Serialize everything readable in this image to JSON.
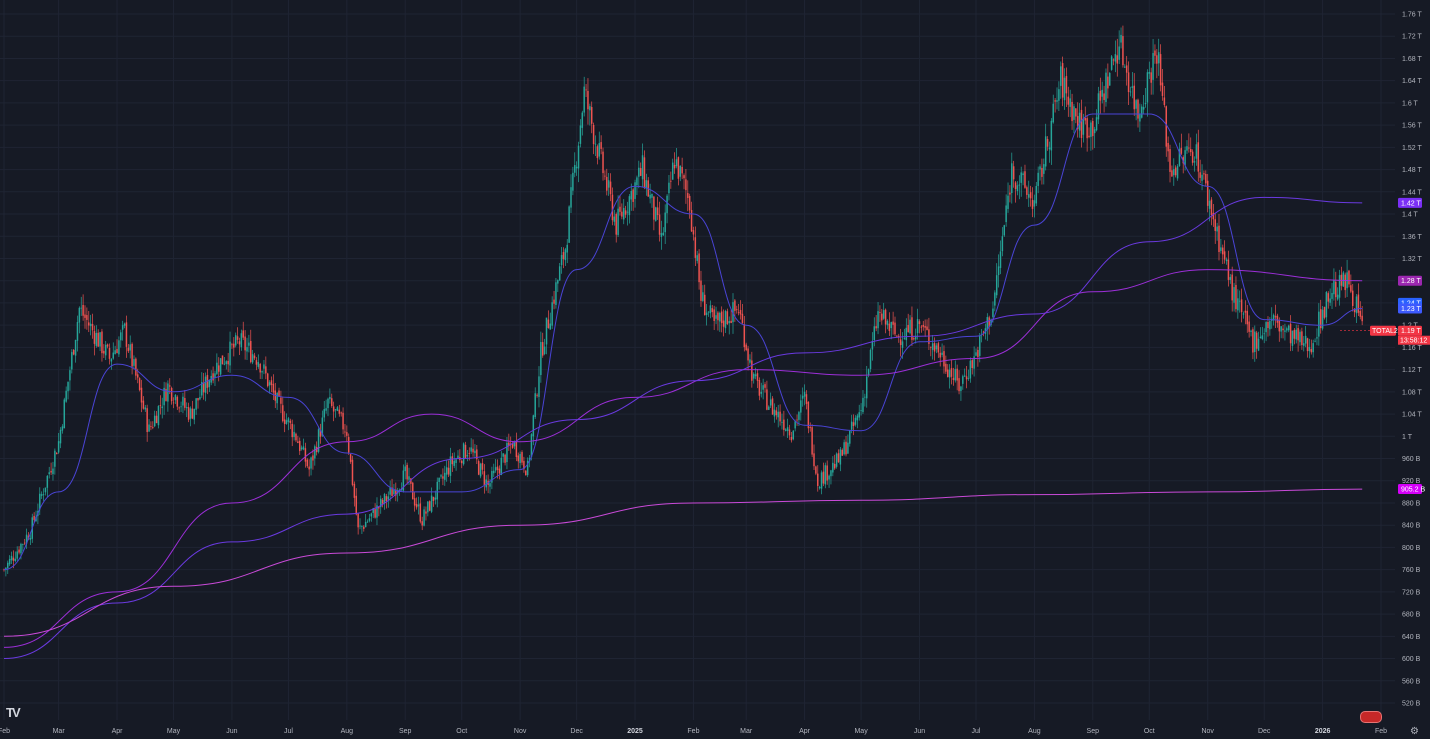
{
  "chart_data": {
    "type": "candlestick",
    "symbol": "TOTAL2",
    "countdown": "13:58:12",
    "y_axis": {
      "ticks": [
        "1.76 T",
        "1.72 T",
        "1.68 T",
        "1.64 T",
        "1.6 T",
        "1.56 T",
        "1.52 T",
        "1.48 T",
        "1.44 T",
        "1.4 T",
        "1.36 T",
        "1.32 T",
        "1.28 T",
        "1.24 T",
        "1.2 T",
        "1.16 T",
        "1.12 T",
        "1.08 T",
        "1.04 T",
        "1 T",
        "960 B",
        "920 B",
        "880 B",
        "840 B",
        "800 B",
        "760 B",
        "720 B",
        "680 B",
        "640 B",
        "600 B",
        "560 B",
        "520 B"
      ],
      "values": [
        1760,
        1720,
        1680,
        1640,
        1600,
        1560,
        1520,
        1480,
        1440,
        1400,
        1360,
        1320,
        1280,
        1240,
        1200,
        1160,
        1120,
        1080,
        1040,
        1000,
        960,
        920,
        880,
        840,
        800,
        760,
        720,
        680,
        640,
        600,
        560,
        520
      ],
      "unit": "B"
    },
    "x_axis": {
      "ticks": [
        "Feb",
        "Mar",
        "Apr",
        "May",
        "Jun",
        "Jul",
        "Aug",
        "Sep",
        "Oct",
        "Nov",
        "Dec",
        "2025",
        "Feb",
        "Mar",
        "Apr",
        "May",
        "Jun",
        "Jul",
        "Aug",
        "Sep",
        "Oct",
        "Nov",
        "Dec",
        "2026",
        "Feb"
      ],
      "bold": [
        "2025",
        "2026"
      ],
      "range": [
        "2024-02-01",
        "2026-02-01"
      ]
    },
    "price_path": [
      [
        "2024-02-01",
        760
      ],
      [
        "2024-02-15",
        830
      ],
      [
        "2024-03-01",
        990
      ],
      [
        "2024-03-12",
        1230
      ],
      [
        "2024-03-28",
        1140
      ],
      [
        "2024-04-05",
        1190
      ],
      [
        "2024-04-18",
        1010
      ],
      [
        "2024-04-28",
        1090
      ],
      [
        "2024-05-10",
        1040
      ],
      [
        "2024-05-22",
        1120
      ],
      [
        "2024-06-05",
        1170
      ],
      [
        "2024-06-15",
        1140
      ],
      [
        "2024-06-25",
        1060
      ],
      [
        "2024-07-05",
        1000
      ],
      [
        "2024-07-12",
        940
      ],
      [
        "2024-07-22",
        1060
      ],
      [
        "2024-08-01",
        1010
      ],
      [
        "2024-08-07",
        830
      ],
      [
        "2024-08-20",
        880
      ],
      [
        "2024-09-01",
        930
      ],
      [
        "2024-09-10",
        850
      ],
      [
        "2024-09-25",
        950
      ],
      [
        "2024-10-05",
        980
      ],
      [
        "2024-10-15",
        910
      ],
      [
        "2024-10-28",
        990
      ],
      [
        "2024-11-05",
        940
      ],
      [
        "2024-11-12",
        1150
      ],
      [
        "2024-11-25",
        1340
      ],
      [
        "2024-12-05",
        1620
      ],
      [
        "2024-12-12",
        1520
      ],
      [
        "2024-12-22",
        1380
      ],
      [
        "2025-01-05",
        1480
      ],
      [
        "2025-01-15",
        1350
      ],
      [
        "2025-01-22",
        1500
      ],
      [
        "2025-01-30",
        1420
      ],
      [
        "2025-02-05",
        1250
      ],
      [
        "2025-02-12",
        1200
      ],
      [
        "2025-02-25",
        1230
      ],
      [
        "2025-03-05",
        1100
      ],
      [
        "2025-03-15",
        1050
      ],
      [
        "2025-03-25",
        1010
      ],
      [
        "2025-04-01",
        1070
      ],
      [
        "2025-04-08",
        920
      ],
      [
        "2025-04-20",
        960
      ],
      [
        "2025-05-01",
        1050
      ],
      [
        "2025-05-10",
        1220
      ],
      [
        "2025-05-20",
        1180
      ],
      [
        "2025-06-01",
        1200
      ],
      [
        "2025-06-12",
        1150
      ],
      [
        "2025-06-22",
        1090
      ],
      [
        "2025-06-30",
        1140
      ],
      [
        "2025-07-10",
        1230
      ],
      [
        "2025-07-20",
        1480
      ],
      [
        "2025-08-01",
        1420
      ],
      [
        "2025-08-15",
        1640
      ],
      [
        "2025-08-25",
        1560
      ],
      [
        "2025-09-01",
        1560
      ],
      [
        "2025-09-15",
        1710
      ],
      [
        "2025-09-25",
        1580
      ],
      [
        "2025-10-05",
        1700
      ],
      [
        "2025-10-12",
        1480
      ],
      [
        "2025-10-25",
        1520
      ],
      [
        "2025-11-05",
        1380
      ],
      [
        "2025-11-15",
        1250
      ],
      [
        "2025-11-25",
        1170
      ],
      [
        "2025-12-05",
        1210
      ],
      [
        "2025-12-15",
        1180
      ],
      [
        "2025-12-25",
        1160
      ],
      [
        "2026-01-05",
        1260
      ],
      [
        "2026-01-15",
        1280
      ],
      [
        "2026-01-22",
        1195
      ]
    ],
    "moving_averages": [
      {
        "color": "#4a44d6",
        "points": [
          [
            "2024-02-01",
            760
          ],
          [
            "2024-03-01",
            900
          ],
          [
            "2024-04-01",
            1130
          ],
          [
            "2024-05-01",
            1080
          ],
          [
            "2024-06-01",
            1110
          ],
          [
            "2024-07-01",
            1070
          ],
          [
            "2024-08-01",
            970
          ],
          [
            "2024-09-01",
            900
          ],
          [
            "2024-10-01",
            900
          ],
          [
            "2024-11-01",
            940
          ],
          [
            "2024-12-01",
            1300
          ],
          [
            "2025-01-01",
            1450
          ],
          [
            "2025-02-01",
            1400
          ],
          [
            "2025-03-01",
            1200
          ],
          [
            "2025-04-01",
            1020
          ],
          [
            "2025-05-01",
            1010
          ],
          [
            "2025-06-01",
            1170
          ],
          [
            "2025-07-01",
            1180
          ],
          [
            "2025-08-01",
            1380
          ],
          [
            "2025-09-01",
            1580
          ],
          [
            "2025-10-01",
            1580
          ],
          [
            "2025-11-01",
            1450
          ],
          [
            "2025-12-01",
            1210
          ],
          [
            "2026-01-01",
            1200
          ],
          [
            "2026-01-22",
            1230
          ]
        ]
      },
      {
        "color": "#9c2fd8",
        "points": [
          [
            "2024-02-01",
            620
          ],
          [
            "2024-04-01",
            720
          ],
          [
            "2024-06-01",
            880
          ],
          [
            "2024-08-01",
            990
          ],
          [
            "2024-09-15",
            1040
          ],
          [
            "2024-11-01",
            990
          ],
          [
            "2025-01-01",
            1070
          ],
          [
            "2025-03-01",
            1120
          ],
          [
            "2025-05-01",
            1110
          ],
          [
            "2025-07-01",
            1140
          ],
          [
            "2025-09-01",
            1260
          ],
          [
            "2025-11-01",
            1300
          ],
          [
            "2026-01-22",
            1280
          ]
        ]
      },
      {
        "color": "#6a3ae0",
        "points": [
          [
            "2024-02-01",
            600
          ],
          [
            "2024-04-01",
            700
          ],
          [
            "2024-06-01",
            810
          ],
          [
            "2024-08-01",
            860
          ],
          [
            "2024-10-01",
            960
          ],
          [
            "2024-12-01",
            1030
          ],
          [
            "2025-02-01",
            1100
          ],
          [
            "2025-04-01",
            1150
          ],
          [
            "2025-06-01",
            1180
          ],
          [
            "2025-08-01",
            1220
          ],
          [
            "2025-10-01",
            1350
          ],
          [
            "2025-12-01",
            1430
          ],
          [
            "2026-01-22",
            1420
          ]
        ]
      },
      {
        "color": "#c94ad8",
        "points": [
          [
            "2024-02-01",
            640
          ],
          [
            "2024-05-01",
            730
          ],
          [
            "2024-08-01",
            790
          ],
          [
            "2024-11-01",
            840
          ],
          [
            "2025-02-01",
            880
          ],
          [
            "2025-05-01",
            885
          ],
          [
            "2025-08-01",
            895
          ],
          [
            "2025-11-01",
            900
          ],
          [
            "2026-01-22",
            905
          ]
        ]
      }
    ],
    "axis_labels": [
      {
        "text": "1.42 T",
        "value": 1420,
        "color": "#7b2ff7"
      },
      {
        "text": "1.28 T",
        "value": 1280,
        "color": "#9c27b0"
      },
      {
        "text": "1.24 T",
        "value": 1240,
        "color": "#2962ff"
      },
      {
        "text": "1.23 T",
        "value": 1230,
        "color": "#3d5afe"
      },
      {
        "text": "1.19 T",
        "value": 1190,
        "color": "#f23645"
      },
      {
        "text": "905.2 B",
        "value": 905.2,
        "color": "#d500f9"
      }
    ],
    "grid": true
  }
}
